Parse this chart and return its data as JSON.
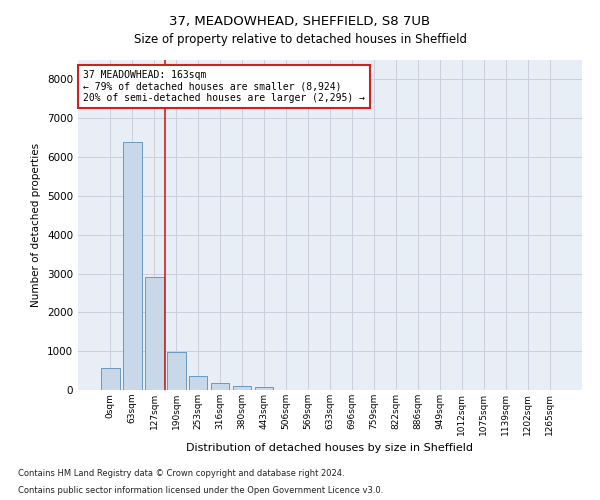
{
  "title1": "37, MEADOWHEAD, SHEFFIELD, S8 7UB",
  "title2": "Size of property relative to detached houses in Sheffield",
  "xlabel": "Distribution of detached houses by size in Sheffield",
  "ylabel": "Number of detached properties",
  "footnote1": "Contains HM Land Registry data © Crown copyright and database right 2024.",
  "footnote2": "Contains public sector information licensed under the Open Government Licence v3.0.",
  "bar_labels": [
    "0sqm",
    "63sqm",
    "127sqm",
    "190sqm",
    "253sqm",
    "316sqm",
    "380sqm",
    "443sqm",
    "506sqm",
    "569sqm",
    "633sqm",
    "696sqm",
    "759sqm",
    "822sqm",
    "886sqm",
    "949sqm",
    "1012sqm",
    "1075sqm",
    "1139sqm",
    "1202sqm",
    "1265sqm"
  ],
  "bar_values": [
    560,
    6400,
    2920,
    990,
    350,
    175,
    100,
    85,
    0,
    0,
    0,
    0,
    0,
    0,
    0,
    0,
    0,
    0,
    0,
    0,
    0
  ],
  "bar_color": "#c8d8e8",
  "bar_edgecolor": "#5b8db8",
  "grid_color": "#ccccdd",
  "bg_color": "#e8eef5",
  "vline_x": 2.5,
  "vline_color": "#cc2222",
  "annotation_line1": "37 MEADOWHEAD: 163sqm",
  "annotation_line2": "← 79% of detached houses are smaller (8,924)",
  "annotation_line3": "20% of semi-detached houses are larger (2,295) →",
  "annotation_box_color": "#cc2222",
  "ylim": [
    0,
    8500
  ],
  "yticks": [
    0,
    1000,
    2000,
    3000,
    4000,
    5000,
    6000,
    7000,
    8000
  ]
}
